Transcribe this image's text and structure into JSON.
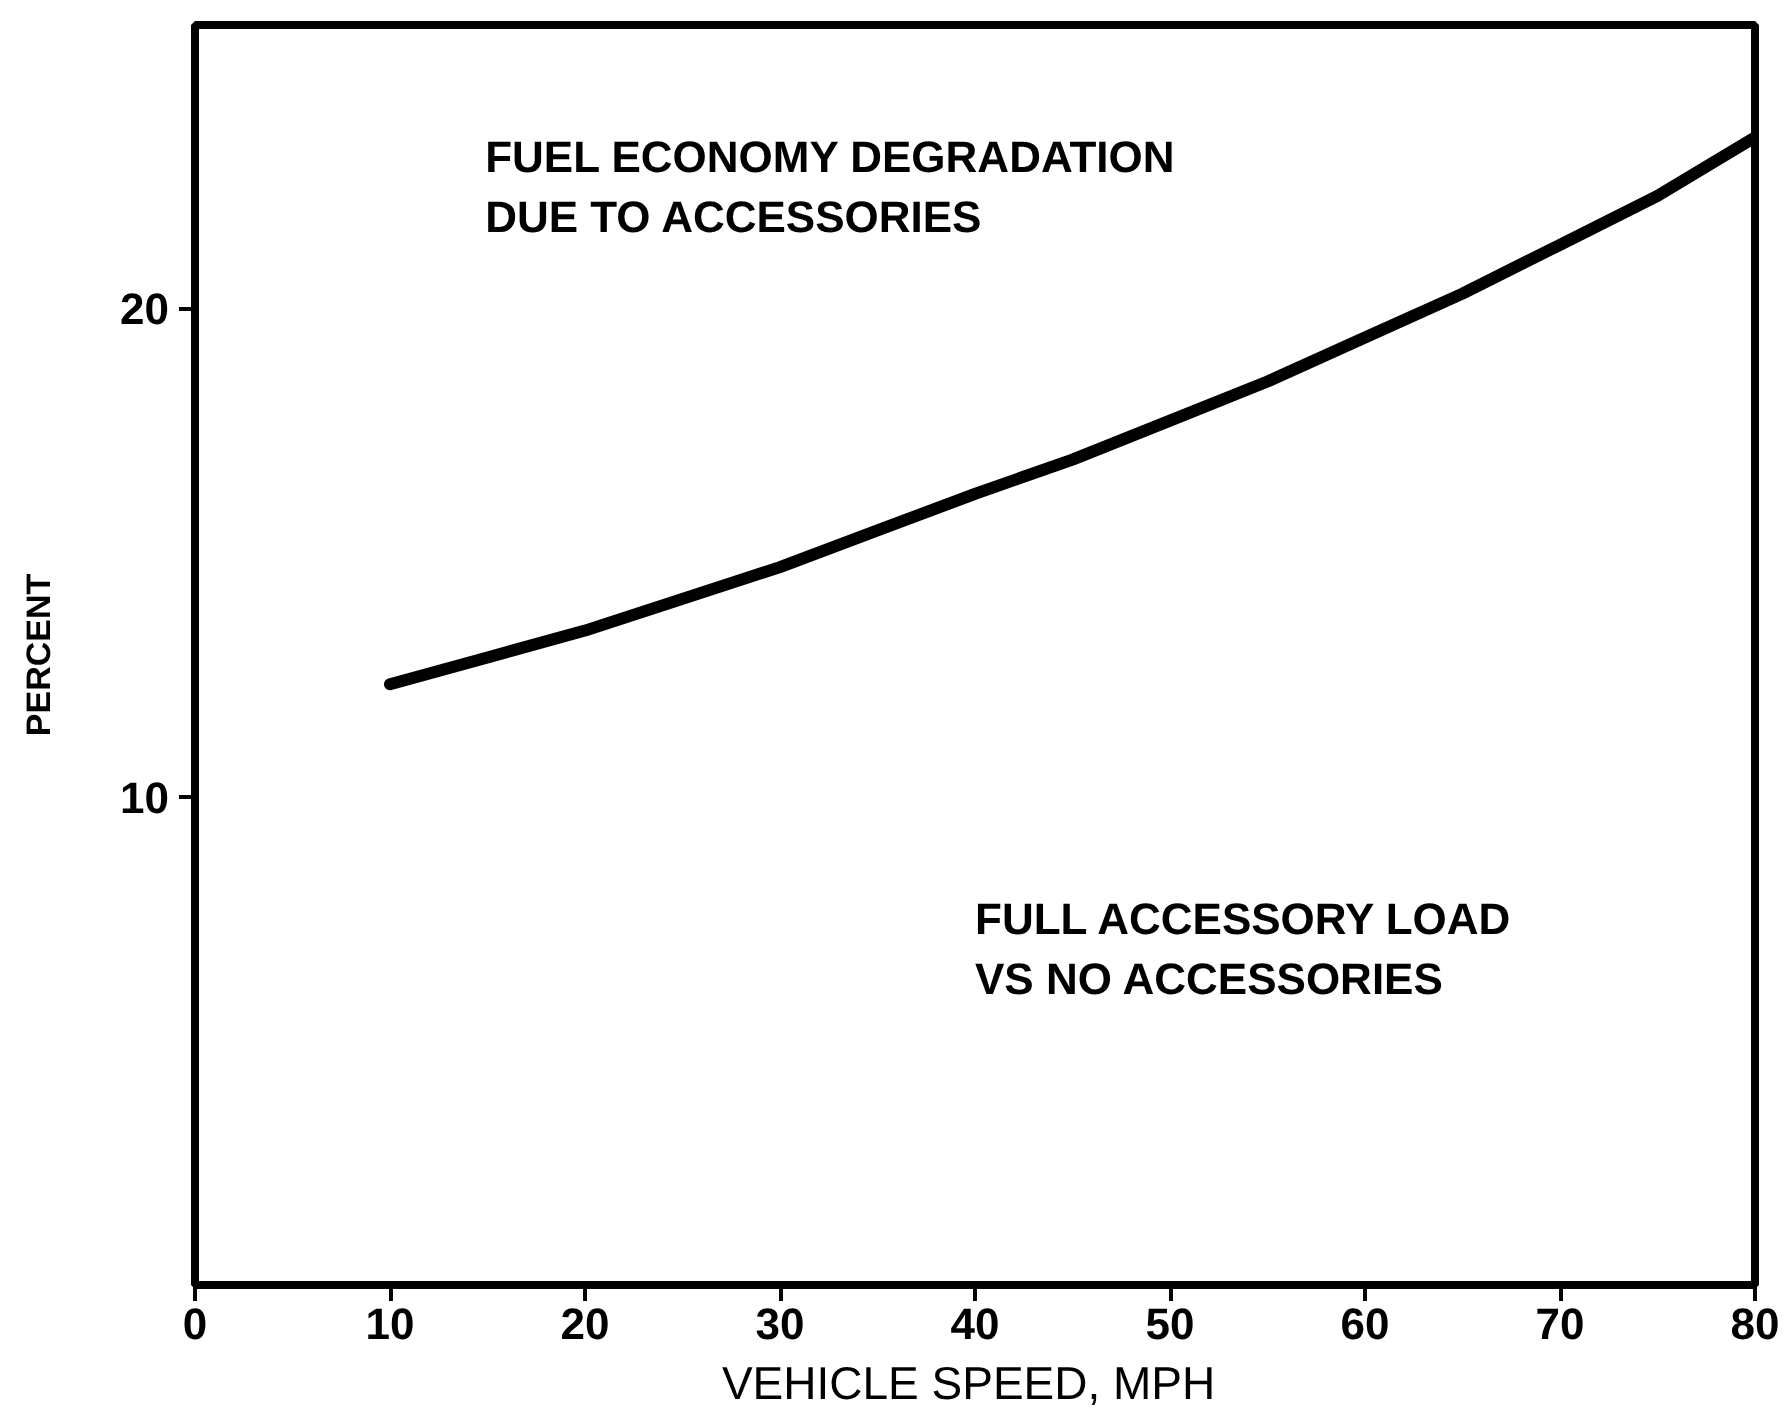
{
  "chart_data": {
    "type": "line",
    "title": "FUEL ECONOMY DEGRADATION\nDUE TO ACCESSORIES",
    "xlabel": "VEHICLE SPEED,  MPH",
    "ylabel": "PERCENT",
    "annotations": [
      "FULL ACCESSORY LOAD\nVS NO ACCESSORIES"
    ],
    "x": [
      10,
      15,
      20,
      25,
      30,
      35,
      40,
      45,
      50,
      55,
      60,
      65,
      70,
      75,
      80
    ],
    "series": [
      {
        "color": "#000000",
        "values": [
          12.3,
          12.85,
          13.4,
          14.05,
          14.7,
          15.45,
          16.2,
          16.9,
          17.7,
          18.5,
          19.4,
          20.3,
          21.3,
          22.3,
          23.5
        ]
      }
    ],
    "xlim": [
      0,
      80
    ],
    "ylim": [
      0,
      25.8
    ],
    "xticks": [
      0,
      10,
      20,
      30,
      40,
      50,
      60,
      70,
      80
    ],
    "yticks": [
      10,
      20
    ],
    "line_style": "solid"
  }
}
